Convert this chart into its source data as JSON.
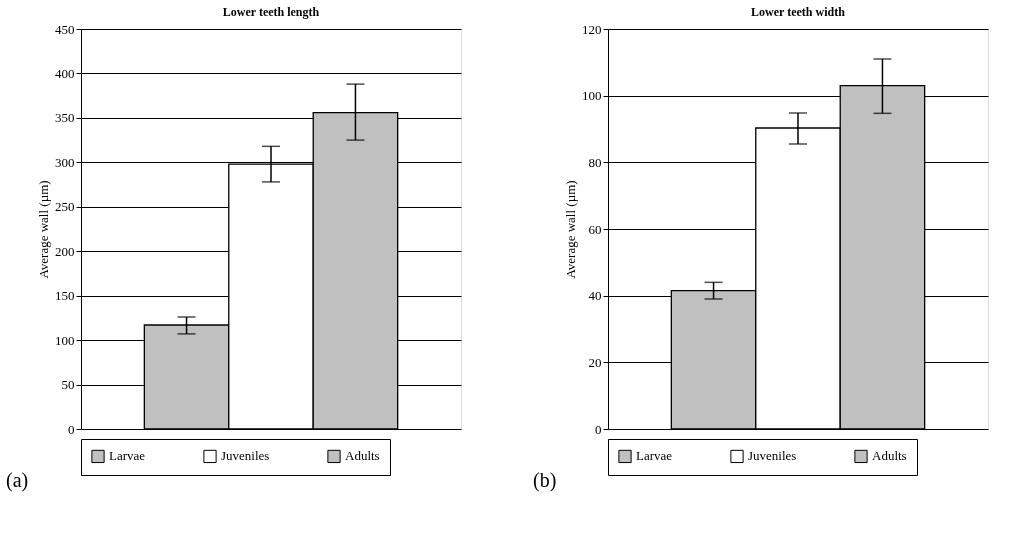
{
  "chart_data": [
    {
      "type": "bar",
      "title": "Lower teeth length",
      "ylabel": "Average wall (µm)",
      "categories": [
        null
      ],
      "series": [
        {
          "name": "Larvae",
          "color": "#c0c0c0",
          "values": [
            117
          ],
          "errors": [
            [
              107,
              126
            ]
          ]
        },
        {
          "name": "Juveniles",
          "color": "#ffffff",
          "values": [
            298
          ],
          "errors": [
            [
              278,
              318
            ]
          ]
        },
        {
          "name": "Adults",
          "color": "#c0c0c0",
          "values": [
            356
          ],
          "errors": [
            [
              325,
              388
            ]
          ]
        }
      ],
      "ylim": [
        0,
        450
      ],
      "yticks": [
        0,
        50,
        100,
        150,
        200,
        250,
        300,
        350,
        400,
        450
      ],
      "grid": "y",
      "legend": "bottom",
      "annotations": [
        "(a)"
      ]
    },
    {
      "type": "bar",
      "title": "Lower teeth width",
      "ylabel": "Average wall (µm)",
      "categories": [
        null
      ],
      "series": [
        {
          "name": "Larvae",
          "color": "#c0c0c0",
          "values": [
            41.5
          ],
          "errors": [
            [
              39,
              44
            ]
          ]
        },
        {
          "name": "Juveniles",
          "color": "#ffffff",
          "values": [
            90.3
          ],
          "errors": [
            [
              85.5,
              94.8
            ]
          ]
        },
        {
          "name": "Adults",
          "color": "#c0c0c0",
          "values": [
            103
          ],
          "errors": [
            [
              94.7,
              111
            ]
          ]
        }
      ],
      "ylim": [
        0,
        120
      ],
      "yticks": [
        0,
        20,
        40,
        60,
        80,
        100,
        120
      ],
      "grid": "y",
      "legend": "bottom",
      "annotations": [
        "(b)"
      ]
    }
  ]
}
